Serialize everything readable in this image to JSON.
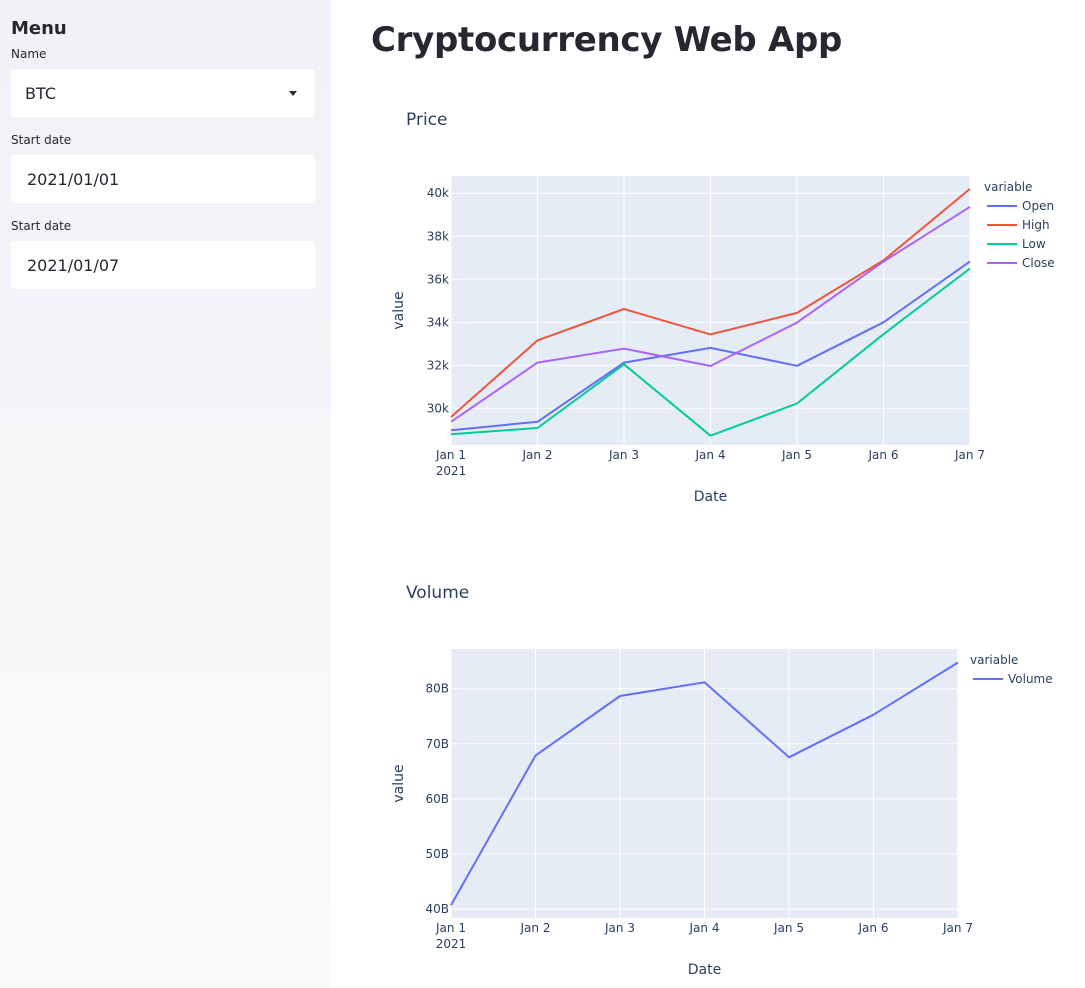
{
  "sidebar": {
    "title": "Menu",
    "name_label": "Name",
    "name_value": "BTC",
    "start_label": "Start date",
    "start_value": "2021/01/01",
    "end_label": "Start date",
    "end_value": "2021/01/07"
  },
  "main": {
    "title": "Cryptocurrency Web App"
  },
  "colors": {
    "open": "#636efa",
    "high": "#EF553B",
    "low": "#00cc96",
    "close": "#ab63fa",
    "plot_bg": "#e5ecf6"
  },
  "chart_data": [
    {
      "type": "line",
      "title": "Price",
      "xlabel": "Date",
      "ylabel": "value",
      "x": [
        "Jan 1\n2021",
        "Jan 2",
        "Jan 3",
        "Jan 4",
        "Jan 5",
        "Jan 6",
        "Jan 7"
      ],
      "yticks": [
        "30k",
        "32k",
        "34k",
        "36k",
        "38k",
        "40k"
      ],
      "ylim": [
        28300,
        40800
      ],
      "legend_title": "variable",
      "legend": "top-right",
      "grid": true,
      "series": [
        {
          "name": "Open",
          "color": "#636efa",
          "values": [
            28990,
            29380,
            32130,
            32810,
            31980,
            34000,
            36830
          ]
        },
        {
          "name": "High",
          "color": "#EF553B",
          "values": [
            29600,
            33160,
            34620,
            33440,
            34440,
            36880,
            40200
          ]
        },
        {
          "name": "Low",
          "color": "#00cc96",
          "values": [
            28800,
            29090,
            32050,
            28730,
            30230,
            33450,
            36500
          ]
        },
        {
          "name": "Close",
          "color": "#ab63fa",
          "values": [
            29380,
            32130,
            32780,
            31970,
            33990,
            36820,
            39370
          ]
        }
      ]
    },
    {
      "type": "line",
      "title": "Volume",
      "xlabel": "Date",
      "ylabel": "value",
      "x": [
        "Jan 1\n2021",
        "Jan 2",
        "Jan 3",
        "Jan 4",
        "Jan 5",
        "Jan 6",
        "Jan 7"
      ],
      "yticks": [
        "40B",
        "50B",
        "60B",
        "70B",
        "80B"
      ],
      "ylim": [
        38400000000,
        87200000000
      ],
      "legend_title": "variable",
      "legend": "top-right",
      "grid": true,
      "series": [
        {
          "name": "Volume",
          "color": "#636efa",
          "values": [
            40730000000,
            67870000000,
            78670000000,
            81160000000,
            67550000000,
            75290000000,
            84760000000
          ]
        }
      ]
    }
  ]
}
